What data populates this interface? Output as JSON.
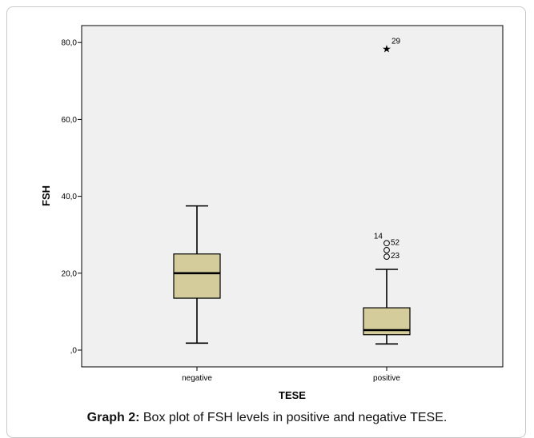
{
  "colors": {
    "box_fill": "#d4cc9a",
    "plot_bg": "#f0f0f0",
    "axis": "#000000"
  },
  "chart_data": {
    "type": "boxplot",
    "xlabel": "TESE",
    "ylabel": "FSH",
    "ylim": [
      -4,
      84
    ],
    "yticks": [
      0,
      20,
      40,
      60,
      80
    ],
    "ytick_labels": [
      ",0",
      "20,0",
      "40,0",
      "60,0",
      "80,0"
    ],
    "categories": [
      "negative",
      "positive"
    ],
    "boxes": [
      {
        "category": "negative",
        "whisker_low": 1.8,
        "q1": 13.5,
        "median": 20.0,
        "q3": 25.0,
        "whisker_high": 37.5,
        "outliers": [],
        "extremes": []
      },
      {
        "category": "positive",
        "whisker_low": 1.6,
        "q1": 4.0,
        "median": 5.2,
        "q3": 11.0,
        "whisker_high": 21.0,
        "outliers": [
          {
            "value": 27.8,
            "label": "52"
          },
          {
            "value": 26.0,
            "label": ""
          },
          {
            "value": 24.3,
            "label": "23"
          }
        ],
        "outlier_annotation": "14",
        "extremes": [
          {
            "value": 78.5,
            "label": "29"
          }
        ]
      }
    ],
    "grid": false,
    "legend": "none"
  },
  "caption": {
    "label": "Graph 2:",
    "text": " Box plot of FSH levels in positive and negative TESE."
  }
}
